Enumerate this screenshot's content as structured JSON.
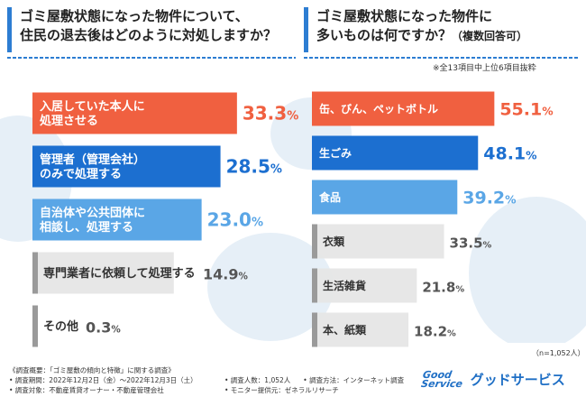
{
  "left_title": {
    "line1": "ゴミ屋敷状態になった物件について、",
    "line2": "住民の退去後はどのように対処しますか？"
  },
  "right_title": {
    "line1": "ゴミ屋敷状態になった物件に",
    "line2_main": "多いものは何ですか？",
    "line2_sub": "（複数回答可）"
  },
  "right_note": "※全13項目中上位6項目抜粋",
  "n_note": "（n=1,052人）",
  "colors": {
    "red": "#f06040",
    "blue": "#1c6fd0",
    "lightblue": "#5aa6e6",
    "gray": "#b4b4b4",
    "value_red": "#f06040",
    "value_blue": "#1c6fd0",
    "value_lightblue": "#5aa6e6",
    "value_gray": "#555555"
  },
  "chart_data": [
    {
      "type": "bar",
      "title": "ゴミ屋敷状態になった物件について、住民の退去後はどのように対処しますか？",
      "categories": [
        [
          "入居していた本人に",
          "処理させる"
        ],
        [
          "管理者（管理会社）",
          "のみで処理する"
        ],
        [
          "自治体や公共団体に",
          "相談し、処理する"
        ],
        [
          "専門業者に依頼して処理する"
        ],
        [
          "その他"
        ]
      ],
      "values": [
        33.3,
        28.5,
        23.0,
        14.9,
        0.3
      ],
      "labels": [
        "33.3%",
        "28.5%",
        "23.0%",
        "14.9%",
        "0.3%"
      ],
      "value_main": [
        "33.3",
        "28.5",
        "23.0",
        "14.9",
        "0.3"
      ],
      "unit": "%",
      "styles": [
        "red",
        "blue",
        "lightblue",
        "gray",
        "gray"
      ],
      "xlim": [
        0,
        42
      ]
    },
    {
      "type": "bar",
      "title": "ゴミ屋敷状態になった物件に多いものは何ですか？（複数回答可）",
      "categories": [
        [
          "缶、びん、ペットボトル"
        ],
        [
          "生ごみ"
        ],
        [
          "食品"
        ],
        [
          "衣類"
        ],
        [
          "生活雑貨"
        ],
        [
          "本、紙類"
        ]
      ],
      "values": [
        55.1,
        48.1,
        39.2,
        33.5,
        21.8,
        18.2
      ],
      "labels": [
        "55.1%",
        "48.1%",
        "39.2%",
        "33.5%",
        "21.8%",
        "18.2%"
      ],
      "value_main": [
        "55.1",
        "48.1",
        "39.2",
        "33.5",
        "21.8",
        "18.2"
      ],
      "unit": "%",
      "styles": [
        "red",
        "blue",
        "lightblue",
        "gray",
        "gray",
        "gray"
      ],
      "xlim": [
        0,
        60
      ]
    }
  ],
  "footer": {
    "overview": "《調査概要：「ゴミ屋敷の傾向と特徴」に関する調査》",
    "period": "• 調査期間：2022年12月2日（金）～2022年12月3日（土）",
    "people": "• 調査人数：1,052人",
    "method": "• 調査方法：インターネット調査",
    "target": "• 調査対象：不動産賃貸オーナー・不動産管理会社",
    "provider": "• モニター提供元：ゼネラルリサーチ"
  },
  "logo": {
    "mark1": "Good",
    "mark2": "Service",
    "text": "グッドサービス"
  }
}
